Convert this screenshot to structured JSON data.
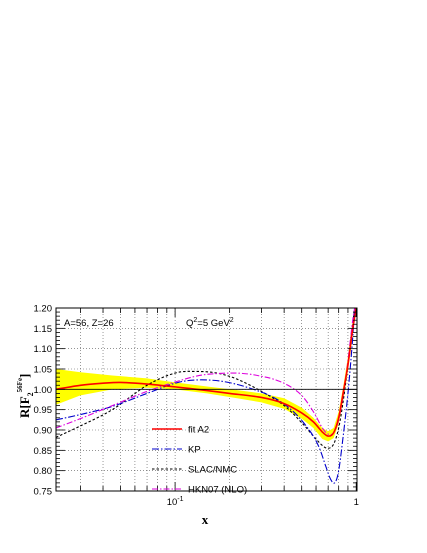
{
  "chart_data": {
    "type": "line",
    "title": "",
    "xlabel": "x",
    "ylabel": "R[F",
    "ylabel_sub": "2",
    "ylabel_sup": "56Fe",
    "ylabel_tail": "]",
    "x_scale": "log",
    "xlim": [
      0.022,
      1.01
    ],
    "ylim": [
      0.75,
      1.2
    ],
    "grid": true,
    "x_tick_labels": [
      {
        "value": 0.1,
        "label": "10",
        "sup": "-1"
      },
      {
        "value": 1.0,
        "label": "1",
        "sup": ""
      }
    ],
    "y_tick_labels": [
      "0.75",
      "0.80",
      "0.85",
      "0.90",
      "0.95",
      "1.00",
      "1.05",
      "1.10",
      "1.15",
      "1.20"
    ],
    "annotations": {
      "nucleus": "A=56, Z=26",
      "q2_prefix": "Q",
      "q2_sup": "2",
      "q2_value": "=5 GeV",
      "q2_unit_sup": "2"
    },
    "legend_position": "bottom-center",
    "band": {
      "color": "#ffff00",
      "x": [
        0.022,
        0.03,
        0.045,
        0.07,
        0.1,
        0.15,
        0.22,
        0.3,
        0.4,
        0.5,
        0.58,
        0.65,
        0.7,
        0.75,
        0.8,
        0.85,
        0.9,
        0.95,
        0.98,
        1.0
      ],
      "upper": [
        1.05,
        1.042,
        1.034,
        1.027,
        1.017,
        1.007,
        0.998,
        0.99,
        0.978,
        0.955,
        0.93,
        0.905,
        0.897,
        0.905,
        0.945,
        1.01,
        1.08,
        1.16,
        1.2,
        1.2
      ],
      "lower": [
        0.962,
        0.985,
        1.0,
        1.004,
        1.0,
        0.99,
        0.978,
        0.968,
        0.952,
        0.928,
        0.905,
        0.878,
        0.872,
        0.88,
        0.915,
        0.975,
        1.045,
        1.12,
        1.18,
        1.2
      ]
    },
    "series": [
      {
        "name": "fit A2",
        "color": "#ff0000",
        "dash": "",
        "width": 1.6,
        "x": [
          0.022,
          0.03,
          0.04,
          0.05,
          0.07,
          0.1,
          0.15,
          0.2,
          0.3,
          0.4,
          0.5,
          0.58,
          0.65,
          0.7,
          0.75,
          0.8,
          0.85,
          0.9,
          0.95,
          1.0
        ],
        "y": [
          1.0,
          1.01,
          1.015,
          1.017,
          1.013,
          1.006,
          0.997,
          0.99,
          0.98,
          0.965,
          0.942,
          0.92,
          0.895,
          0.885,
          0.893,
          0.93,
          0.995,
          1.06,
          1.14,
          1.2
        ]
      },
      {
        "name": "KP",
        "color": "#0000cc",
        "dash": "7,2,1.5,2",
        "width": 1.1,
        "x": [
          0.022,
          0.03,
          0.045,
          0.07,
          0.1,
          0.13,
          0.18,
          0.25,
          0.35,
          0.45,
          0.55,
          0.62,
          0.68,
          0.72,
          0.76,
          0.8,
          0.85,
          0.9,
          0.95,
          0.98
        ],
        "y": [
          0.925,
          0.938,
          0.958,
          0.99,
          1.015,
          1.023,
          1.02,
          1.005,
          0.98,
          0.945,
          0.9,
          0.86,
          0.81,
          0.78,
          0.77,
          0.8,
          0.89,
          0.99,
          1.11,
          1.2
        ]
      },
      {
        "name": "SLAC/NMC",
        "color": "#000000",
        "dash": "2.5,2",
        "width": 1.1,
        "x": [
          0.022,
          0.03,
          0.045,
          0.07,
          0.1,
          0.13,
          0.17,
          0.22,
          0.3,
          0.4,
          0.5,
          0.58,
          0.65,
          0.7,
          0.75,
          0.8,
          0.85,
          0.9,
          0.95,
          0.98
        ],
        "y": [
          0.882,
          0.91,
          0.95,
          1.01,
          1.04,
          1.044,
          1.04,
          1.025,
          0.995,
          0.96,
          0.918,
          0.885,
          0.862,
          0.855,
          0.865,
          0.905,
          0.975,
          1.06,
          1.15,
          1.2
        ]
      },
      {
        "name": "HKN07 (NLO)",
        "color": "#dd00dd",
        "dash": "6,2,1.5,2",
        "width": 1.1,
        "x": [
          0.022,
          0.03,
          0.045,
          0.07,
          0.1,
          0.14,
          0.2,
          0.25,
          0.3,
          0.35,
          0.42,
          0.5,
          0.58,
          0.65,
          0.7,
          0.75,
          0.8,
          0.85,
          0.9,
          0.95,
          0.98
        ],
        "y": [
          0.905,
          0.928,
          0.96,
          0.995,
          1.018,
          1.035,
          1.04,
          1.038,
          1.032,
          1.025,
          1.01,
          0.985,
          0.945,
          0.905,
          0.89,
          0.893,
          0.925,
          0.99,
          1.07,
          1.16,
          1.2
        ]
      }
    ]
  }
}
